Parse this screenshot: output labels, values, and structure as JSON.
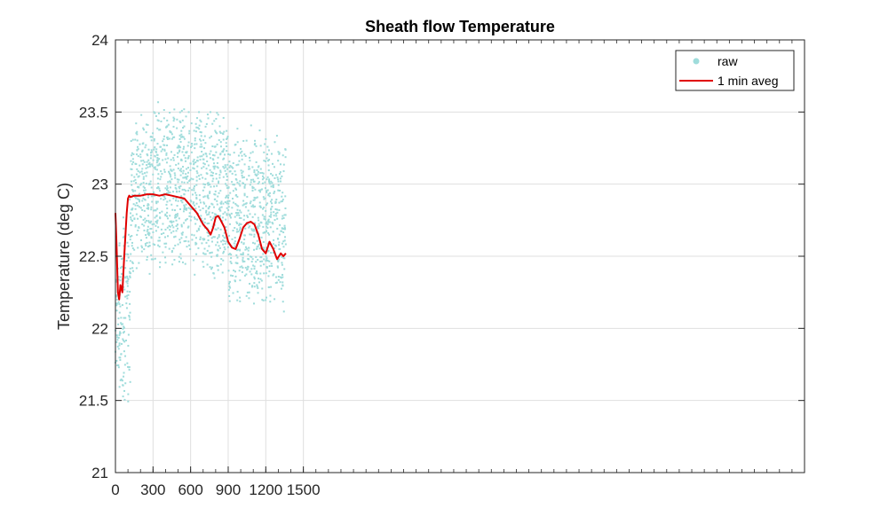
{
  "chart_data": {
    "type": "line",
    "title": "Sheath flow Temperature",
    "xlabel": "",
    "ylabel": "Temperature (deg C)",
    "ylim": [
      21,
      24
    ],
    "yticks": [
      "21",
      "21.5",
      "22",
      "22.5",
      "23",
      "23.5",
      "24"
    ],
    "xticks": [
      "0",
      "300",
      "600",
      "900",
      "1200",
      "1500"
    ],
    "xlim": [
      0,
      5500
    ],
    "grid": true,
    "legend_position": "top-right",
    "series": [
      {
        "name": "raw",
        "kind": "scatter",
        "color": "#9fdcdb",
        "bands": [
          {
            "x": [
              0,
              40
            ],
            "y": [
              21.35,
              22.8
            ]
          },
          {
            "x": [
              40,
              120
            ],
            "y": [
              21.4,
              22.95
            ]
          },
          {
            "x": [
              120,
              300
            ],
            "y": [
              22.35,
              23.5
            ]
          },
          {
            "x": [
              300,
              600
            ],
            "y": [
              22.4,
              23.6
            ]
          },
          {
            "x": [
              600,
              900
            ],
            "y": [
              22.3,
              23.55
            ]
          },
          {
            "x": [
              900,
              1200
            ],
            "y": [
              22.1,
              23.45
            ]
          },
          {
            "x": [
              1200,
              1360
            ],
            "y": [
              22.05,
              23.4
            ]
          }
        ]
      },
      {
        "name": "1 min aveg",
        "kind": "line",
        "color": "#e00000",
        "x": [
          0,
          10,
          20,
          30,
          40,
          55,
          70,
          80,
          90,
          100,
          110,
          120,
          150,
          200,
          250,
          300,
          350,
          400,
          450,
          500,
          550,
          600,
          650,
          700,
          740,
          760,
          780,
          800,
          820,
          840,
          870,
          900,
          930,
          960,
          990,
          1020,
          1050,
          1080,
          1110,
          1140,
          1170,
          1200,
          1230,
          1260,
          1290,
          1320,
          1340,
          1360
        ],
        "y": [
          22.8,
          22.55,
          22.25,
          22.2,
          22.3,
          22.25,
          22.5,
          22.65,
          22.8,
          22.9,
          22.92,
          22.91,
          22.92,
          22.92,
          22.93,
          22.93,
          22.92,
          22.93,
          22.92,
          22.91,
          22.9,
          22.85,
          22.8,
          22.72,
          22.68,
          22.65,
          22.7,
          22.77,
          22.78,
          22.75,
          22.7,
          22.6,
          22.56,
          22.55,
          22.62,
          22.7,
          22.73,
          22.74,
          22.72,
          22.65,
          22.55,
          22.52,
          22.6,
          22.55,
          22.48,
          22.52,
          22.5,
          22.52
        ]
      }
    ]
  }
}
